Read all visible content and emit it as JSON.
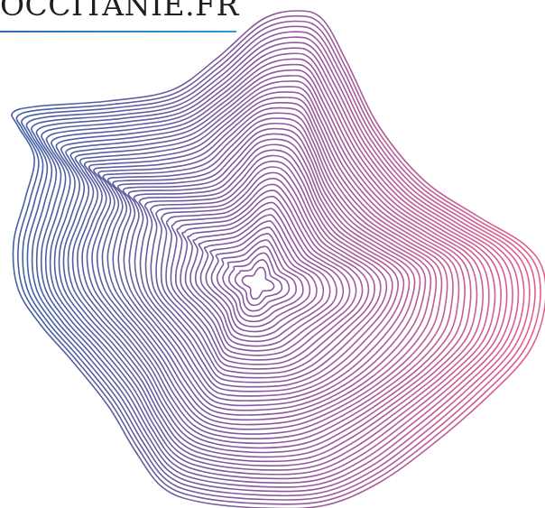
{
  "header": {
    "site_title": "OCCITANIE.FR"
  },
  "artwork": {
    "name": "contour-wave-illustration",
    "colors": {
      "start": "#3f62a3",
      "mid": "#8a5a9d",
      "end": "#e45f8f",
      "rule": "#2b9bd1"
    }
  }
}
